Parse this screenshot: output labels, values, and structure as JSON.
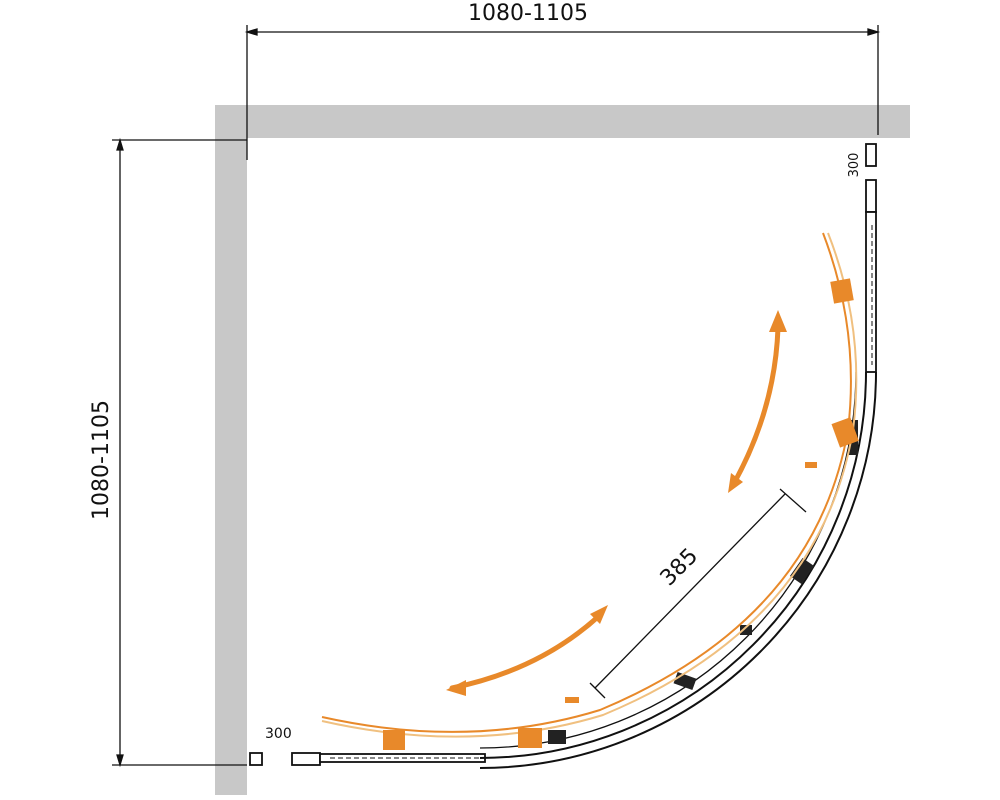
{
  "dimensions": {
    "width_label": "1080-1105",
    "depth_label": "1080-1105",
    "door_opening_label": "385",
    "fixed_panel_bottom_label": "300",
    "fixed_panel_right_label": "300"
  },
  "colors": {
    "wall": "#c8c8c8",
    "line": "#111111",
    "door_accent": "#e8892a"
  }
}
